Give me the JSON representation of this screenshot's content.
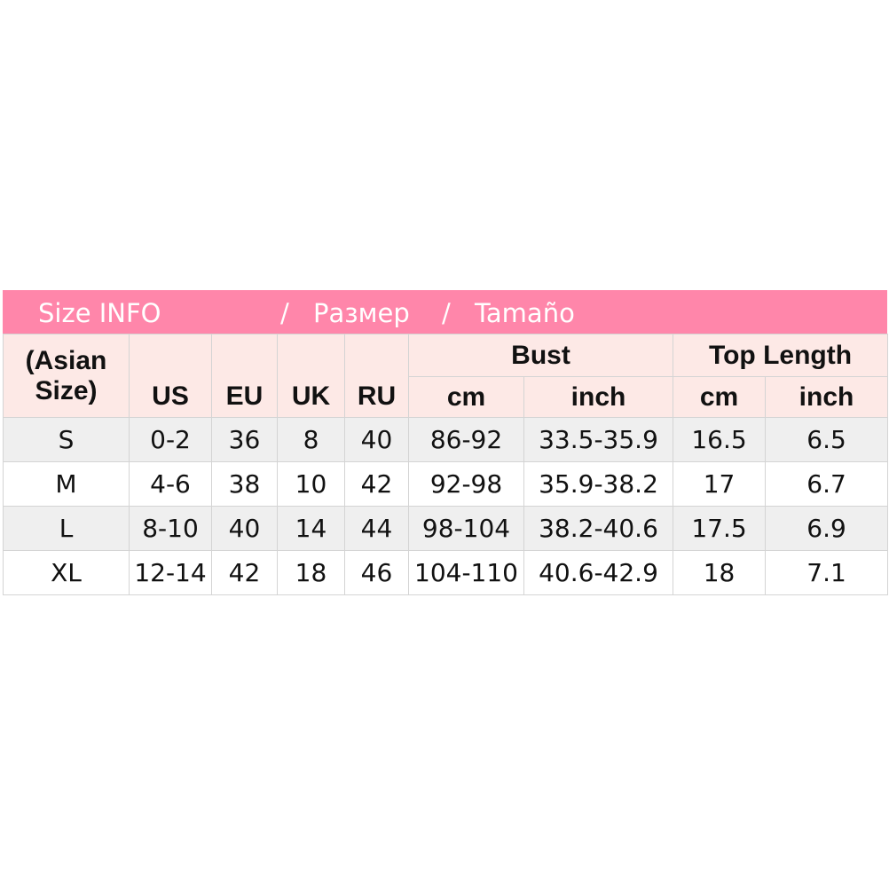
{
  "title": {
    "en": "Size INFO",
    "sep1": "/",
    "ru": "Размер",
    "sep2": "/",
    "es": "Tamaño"
  },
  "colors": {
    "title_bg": "#ff86aa",
    "header_bg": "#fde9e6",
    "odd_row_bg": "#efefef",
    "border": "#d4d4d4"
  },
  "header": {
    "asian_line1": "(Asian",
    "asian_line2": "Size)",
    "us": "US",
    "eu": "EU",
    "uk": "UK",
    "ru": "RU",
    "bust": "Bust",
    "top_length": "Top Length",
    "bust_cm": "cm",
    "bust_inch": "inch",
    "len_cm": "cm",
    "len_inch": "inch"
  },
  "rows": [
    [
      "S",
      "0-2",
      "36",
      "8",
      "40",
      "86-92",
      "33.5-35.9",
      "16.5",
      "6.5"
    ],
    [
      "M",
      "4-6",
      "38",
      "10",
      "42",
      "92-98",
      "35.9-38.2",
      "17",
      "6.7"
    ],
    [
      "L",
      "8-10",
      "40",
      "14",
      "44",
      "98-104",
      "38.2-40.6",
      "17.5",
      "6.9"
    ],
    [
      "XL",
      "12-14",
      "42",
      "18",
      "46",
      "104-110",
      "40.6-42.9",
      "18",
      "7.1"
    ]
  ]
}
